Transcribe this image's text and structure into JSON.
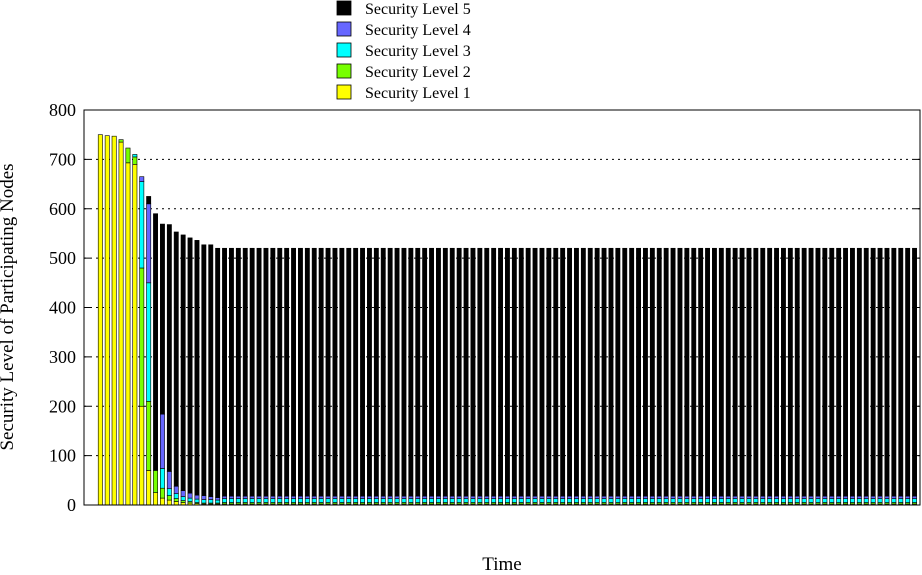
{
  "chart_data": {
    "type": "bar",
    "stacked": true,
    "title": "",
    "xlabel": "Time",
    "ylabel": "Security Level of Participating Nodes",
    "ylim": [
      0,
      800
    ],
    "yticks": [
      0,
      100,
      200,
      300,
      400,
      500,
      600,
      700,
      800
    ],
    "grid": "horizontal dotted lines at y ticks",
    "legend_position": "top, above plot",
    "legend": [
      {
        "name": "Security Level 5",
        "color": "#000000"
      },
      {
        "name": "Security Level 4",
        "color": "#6666ff"
      },
      {
        "name": "Security Level 3",
        "color": "#00ffff"
      },
      {
        "name": "Security Level 2",
        "color": "#77ff00"
      },
      {
        "name": "Security Level 1",
        "color": "#ffff00"
      }
    ],
    "n_bars": 120,
    "series_initial": [
      {
        "name": "Security Level 1",
        "values": [
          0,
          750,
          748,
          747,
          735,
          693,
          690,
          200,
          70,
          25,
          14,
          10,
          7,
          5,
          4,
          3,
          2,
          2,
          2
        ]
      },
      {
        "name": "Security Level 2",
        "values": [
          0,
          0,
          0,
          0,
          5,
          30,
          15,
          280,
          140,
          45,
          20,
          9,
          6,
          4,
          3,
          2,
          2,
          2,
          2
        ]
      },
      {
        "name": "Security Level 3",
        "values": [
          0,
          0,
          0,
          0,
          0,
          0,
          5,
          175,
          240,
          0,
          40,
          14,
          10,
          8,
          7,
          7,
          7,
          7,
          6
        ]
      },
      {
        "name": "Security Level 4",
        "values": [
          0,
          0,
          0,
          0,
          0,
          0,
          0,
          10,
          160,
          0,
          110,
          35,
          15,
          12,
          10,
          8,
          8,
          6,
          5
        ]
      },
      {
        "name": "Security Level 5",
        "values": [
          0,
          0,
          0,
          0,
          0,
          0,
          0,
          0,
          15,
          520,
          385,
          500,
          515,
          518,
          517,
          516,
          508,
          510,
          505
        ]
      }
    ],
    "steady_state": {
      "Security Level 1": 2,
      "Security Level 2": 3,
      "Security Level 3": 8,
      "Security Level 4": 5,
      "Security Level 5": 502
    },
    "totals_note": "Total rises to ~750 at start, declines to ~520 and stays constant"
  }
}
